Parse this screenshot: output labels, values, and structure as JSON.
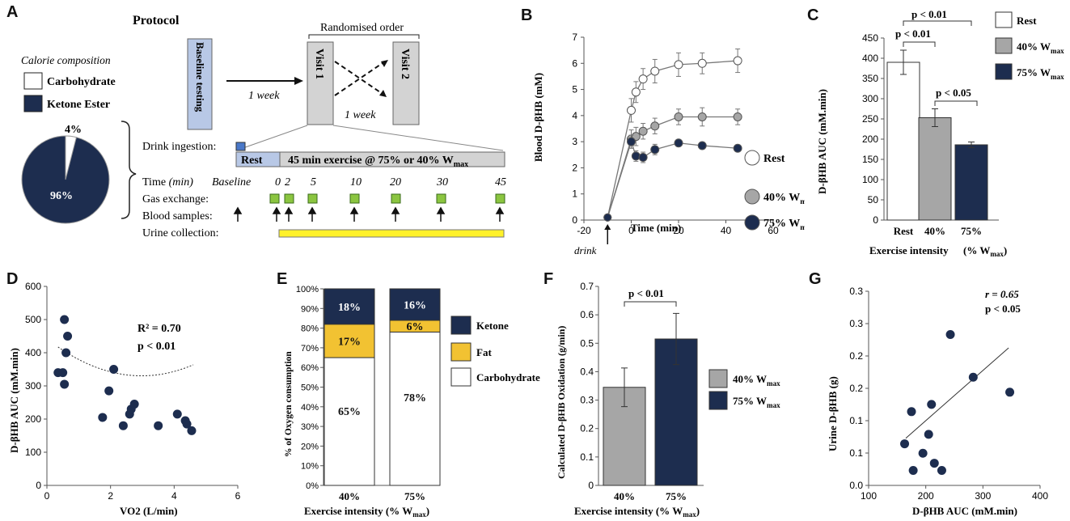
{
  "colors": {
    "navy": "#1d2d4f",
    "gray": "#a6a6a6",
    "yellow": "#f2c232",
    "green": "#8bc540",
    "lightblue": "#b8c8e6",
    "urine": "#fff12a"
  },
  "panel_letters": [
    "A",
    "B",
    "C",
    "D",
    "E",
    "F",
    "G"
  ],
  "panelA": {
    "protocol_title": "Protocol",
    "calorie_title": "Calorie composition",
    "legend": [
      "Carbohydrate",
      "Ketone Ester"
    ],
    "pie_small_label": "4%",
    "pie_large_label": "96%",
    "baseline_box": "Baseline testing",
    "one_week_1": "1 week",
    "one_week_2": "1 week",
    "randomised": "Randomised order",
    "visit1": "Visit 1",
    "visit2": "Visit 2",
    "drink_ingestion": "Drink ingestion:",
    "rest_label": "Rest",
    "exercise_label": "45 min  exercise @ 75% or 40% W",
    "exercise_sub": "max",
    "time_label": "Time",
    "time_unit": "(min)",
    "baseline_label": "Baseline",
    "time_ticks": [
      "0",
      "2",
      "5",
      "10",
      "20",
      "30",
      "45"
    ],
    "gas_exchange": "Gas exchange:",
    "blood_samples": "Blood samples:",
    "urine_collection": "Urine collection:"
  },
  "chart_data": [
    {
      "id": "B",
      "type": "line",
      "xlabel": "Time (min)",
      "ylabel": "Blood D-βHB (mM)",
      "xlim": [
        -20,
        60
      ],
      "ylim": [
        0,
        7
      ],
      "xticks": [
        "-20",
        "0",
        "20",
        "40",
        "60"
      ],
      "yticks": [
        "0",
        "1",
        "2",
        "3",
        "4",
        "5",
        "6",
        "7"
      ],
      "annotation": "drink",
      "series": [
        {
          "name": "Rest",
          "x": [
            -10,
            0,
            2,
            5,
            10,
            20,
            30,
            45
          ],
          "y": [
            0.1,
            4.2,
            4.9,
            5.4,
            5.7,
            5.95,
            6.0,
            6.1
          ],
          "err": [
            0,
            0.45,
            0.4,
            0.4,
            0.45,
            0.45,
            0.4,
            0.45
          ]
        },
        {
          "name": "40% W",
          "sub": "max",
          "x": [
            -10,
            0,
            2,
            5,
            10,
            20,
            30,
            45
          ],
          "y": [
            0.1,
            3.1,
            3.2,
            3.4,
            3.6,
            3.95,
            3.95,
            3.95
          ],
          "err": [
            0,
            0.35,
            0.35,
            0.3,
            0.3,
            0.3,
            0.35,
            0.3
          ]
        },
        {
          "name": "75% W",
          "sub": "max",
          "x": [
            -10,
            0,
            2,
            5,
            10,
            20,
            30,
            45
          ],
          "y": [
            0.1,
            3.0,
            2.45,
            2.4,
            2.7,
            2.95,
            2.85,
            2.75
          ],
          "err": [
            0,
            0.25,
            0.2,
            0.2,
            0.2,
            0.1,
            0.1,
            0.1
          ]
        }
      ]
    },
    {
      "id": "C",
      "type": "bar",
      "xlabel": "Exercise intensity",
      "xlabel2": "(% W",
      "xlabel2_sub": "max",
      "xlabel2_end": ")",
      "ylabel": "D-βHB  AUC (mM.min)",
      "ylim": [
        0,
        450
      ],
      "yticks": [
        "0",
        "50",
        "100",
        "150",
        "200",
        "250",
        "300",
        "350",
        "400",
        "450"
      ],
      "categories": [
        "Rest",
        "40%",
        "75%"
      ],
      "values": [
        390,
        253,
        186
      ],
      "err": [
        30,
        22,
        7
      ],
      "legend": [
        {
          "name": "Rest"
        },
        {
          "name": "40% W",
          "sub": "max"
        },
        {
          "name": "75% W",
          "sub": "max"
        }
      ],
      "annotations": [
        "p < 0.01",
        "p < 0.01",
        "p < 0.05"
      ]
    },
    {
      "id": "D",
      "type": "scatter",
      "xlabel": "VO2 (L/min)",
      "ylabel": "D-βHB  AUC (mM.min)",
      "xlim": [
        0,
        6
      ],
      "ylim": [
        0,
        600
      ],
      "xticks": [
        "0",
        "2",
        "4",
        "6"
      ],
      "yticks": [
        "0",
        "100",
        "200",
        "300",
        "400",
        "500",
        "600"
      ],
      "points": [
        [
          0.35,
          340
        ],
        [
          0.5,
          340
        ],
        [
          0.55,
          500
        ],
        [
          0.6,
          400
        ],
        [
          0.55,
          305
        ],
        [
          0.65,
          450
        ],
        [
          1.75,
          205
        ],
        [
          1.95,
          285
        ],
        [
          2.1,
          350
        ],
        [
          2.4,
          180
        ],
        [
          2.6,
          215
        ],
        [
          2.65,
          230
        ],
        [
          2.75,
          245
        ],
        [
          3.5,
          180
        ],
        [
          4.1,
          215
        ],
        [
          4.35,
          195
        ],
        [
          4.4,
          185
        ],
        [
          4.55,
          165
        ]
      ],
      "fit": {
        "a": 12.6,
        "b": -75,
        "c": 442
      },
      "annotations": [
        "R² = 0.70",
        "p < 0.01"
      ]
    },
    {
      "id": "E",
      "type": "bar",
      "stacked": true,
      "xlabel": "Exercise intensity (% W",
      "xlabel_sub": "max",
      "xlabel_end": ")",
      "ylabel": "% of Oxygen consumption",
      "ylim": [
        0,
        100
      ],
      "yticks": [
        "0%",
        "10%",
        "20%",
        "30%",
        "40%",
        "50%",
        "60%",
        "70%",
        "80%",
        "90%",
        "100%"
      ],
      "categories": [
        "40%",
        "75%"
      ],
      "series": [
        {
          "name": "Carbohydrate",
          "values": [
            65,
            78
          ]
        },
        {
          "name": "Fat",
          "values": [
            17,
            6
          ]
        },
        {
          "name": "Ketone",
          "values": [
            18,
            16
          ]
        }
      ],
      "labels": [
        [
          "65%",
          "17%",
          "18%"
        ],
        [
          "78%",
          "6%",
          "16%"
        ]
      ]
    },
    {
      "id": "F",
      "type": "bar",
      "xlabel": "Exercise intensity (% W",
      "xlabel_sub": "max",
      "xlabel_end": ")",
      "ylabel": "Calculated D-βHB Oxidation (g/min)",
      "ylim": [
        0,
        0.7
      ],
      "yticks": [
        "0",
        "0.1",
        "0.2",
        "0.3",
        "0.4",
        "0.5",
        "0.6",
        "0.7"
      ],
      "categories": [
        "40%",
        "75%"
      ],
      "values": [
        0.345,
        0.515
      ],
      "err": [
        0.068,
        0.09
      ],
      "legend": [
        {
          "name": "40% W",
          "sub": "max"
        },
        {
          "name": "75% W",
          "sub": "max"
        }
      ],
      "annotations": [
        "p < 0.01"
      ]
    },
    {
      "id": "G",
      "type": "scatter",
      "xlabel": "D-βHB AUC (mM.min)",
      "ylabel": "Urine D-βHB (g)",
      "xlim": [
        100,
        400
      ],
      "ylim": [
        0,
        0.35
      ],
      "xticks": [
        "100",
        "200",
        "300",
        "400"
      ],
      "yticks": [
        "0.0",
        "0.1",
        "0.1",
        "0.2",
        "0.2",
        "0.3",
        "0.3"
      ],
      "points": [
        [
          163,
          0.075
        ],
        [
          175,
          0.133
        ],
        [
          178,
          0.027
        ],
        [
          195,
          0.058
        ],
        [
          205,
          0.092
        ],
        [
          210,
          0.146
        ],
        [
          215,
          0.04
        ],
        [
          228,
          0.027
        ],
        [
          243,
          0.272
        ],
        [
          283,
          0.195
        ],
        [
          347,
          0.168
        ]
      ],
      "fit": [
        [
          165,
          0.085
        ],
        [
          345,
          0.248
        ]
      ],
      "annotations": [
        "r = 0.65",
        "p < 0.05"
      ]
    }
  ]
}
